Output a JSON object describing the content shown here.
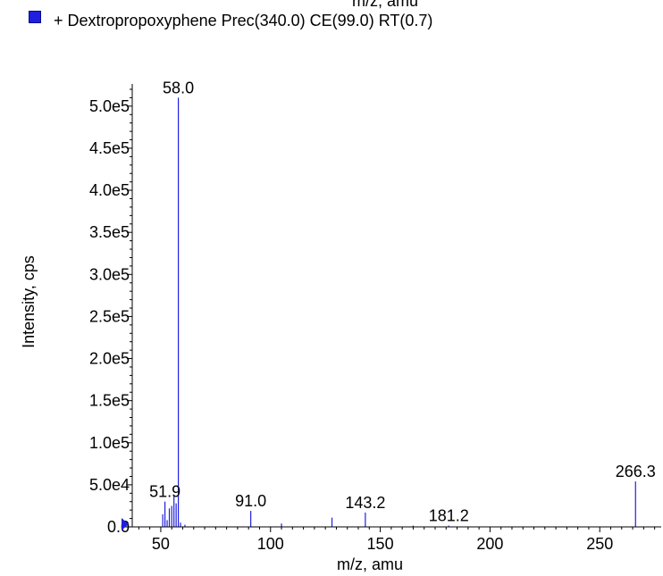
{
  "cutoff_text": "m/z, amu",
  "legend": {
    "marker_color": "#1f1fe0",
    "label": "+ Dextropropoxyphene Prec(340.0) CE(99.0) RT(0.7)"
  },
  "chart_data": {
    "type": "bar",
    "xlabel": "m/z, amu",
    "ylabel": "Intensity, cps",
    "xlim": [
      37,
      278
    ],
    "ylim": [
      0,
      520000
    ],
    "xticks": [
      {
        "v": 50,
        "label": "50"
      },
      {
        "v": 100,
        "label": "100"
      },
      {
        "v": 150,
        "label": "150"
      },
      {
        "v": 200,
        "label": "200"
      },
      {
        "v": 250,
        "label": "250"
      }
    ],
    "yticks": [
      {
        "v": 0,
        "label": "0.0"
      },
      {
        "v": 50000,
        "label": "5.0e4"
      },
      {
        "v": 100000,
        "label": "1.0e5"
      },
      {
        "v": 150000,
        "label": "1.5e5"
      },
      {
        "v": 200000,
        "label": "2.0e5"
      },
      {
        "v": 250000,
        "label": "2.5e5"
      },
      {
        "v": 300000,
        "label": "3.0e5"
      },
      {
        "v": 350000,
        "label": "3.5e5"
      },
      {
        "v": 400000,
        "label": "4.0e5"
      },
      {
        "v": 450000,
        "label": "4.5e5"
      },
      {
        "v": 500000,
        "label": "5.0e5"
      }
    ],
    "line_color": "#1f1fe0",
    "peaks": [
      {
        "mz": 50.9,
        "intensity": 15000
      },
      {
        "mz": 51.9,
        "intensity": 30000
      },
      {
        "mz": 52.9,
        "intensity": 8000
      },
      {
        "mz": 53.9,
        "intensity": 22000
      },
      {
        "mz": 55.0,
        "intensity": 25000
      },
      {
        "mz": 56.0,
        "intensity": 38000
      },
      {
        "mz": 57.0,
        "intensity": 28000
      },
      {
        "mz": 58.0,
        "intensity": 510000
      },
      {
        "mz": 59.0,
        "intensity": 5000
      },
      {
        "mz": 61.0,
        "intensity": 2500
      },
      {
        "mz": 91.0,
        "intensity": 19000
      },
      {
        "mz": 105.0,
        "intensity": 4000
      },
      {
        "mz": 128.0,
        "intensity": 11000
      },
      {
        "mz": 143.2,
        "intensity": 17000
      },
      {
        "mz": 165.0,
        "intensity": 1500
      },
      {
        "mz": 181.2,
        "intensity": 1500
      },
      {
        "mz": 266.3,
        "intensity": 54000
      }
    ],
    "peak_labels": [
      {
        "mz": 58.0,
        "intensity": 510000,
        "label": "58.0"
      },
      {
        "mz": 51.9,
        "intensity": 30000,
        "label": "51.9"
      },
      {
        "mz": 91.0,
        "intensity": 19000,
        "label": "91.0"
      },
      {
        "mz": 143.2,
        "intensity": 17000,
        "label": "143.2"
      },
      {
        "mz": 181.2,
        "intensity": 1500,
        "label": "181.2"
      },
      {
        "mz": 266.3,
        "intensity": 54000,
        "label": "266.3"
      }
    ]
  }
}
